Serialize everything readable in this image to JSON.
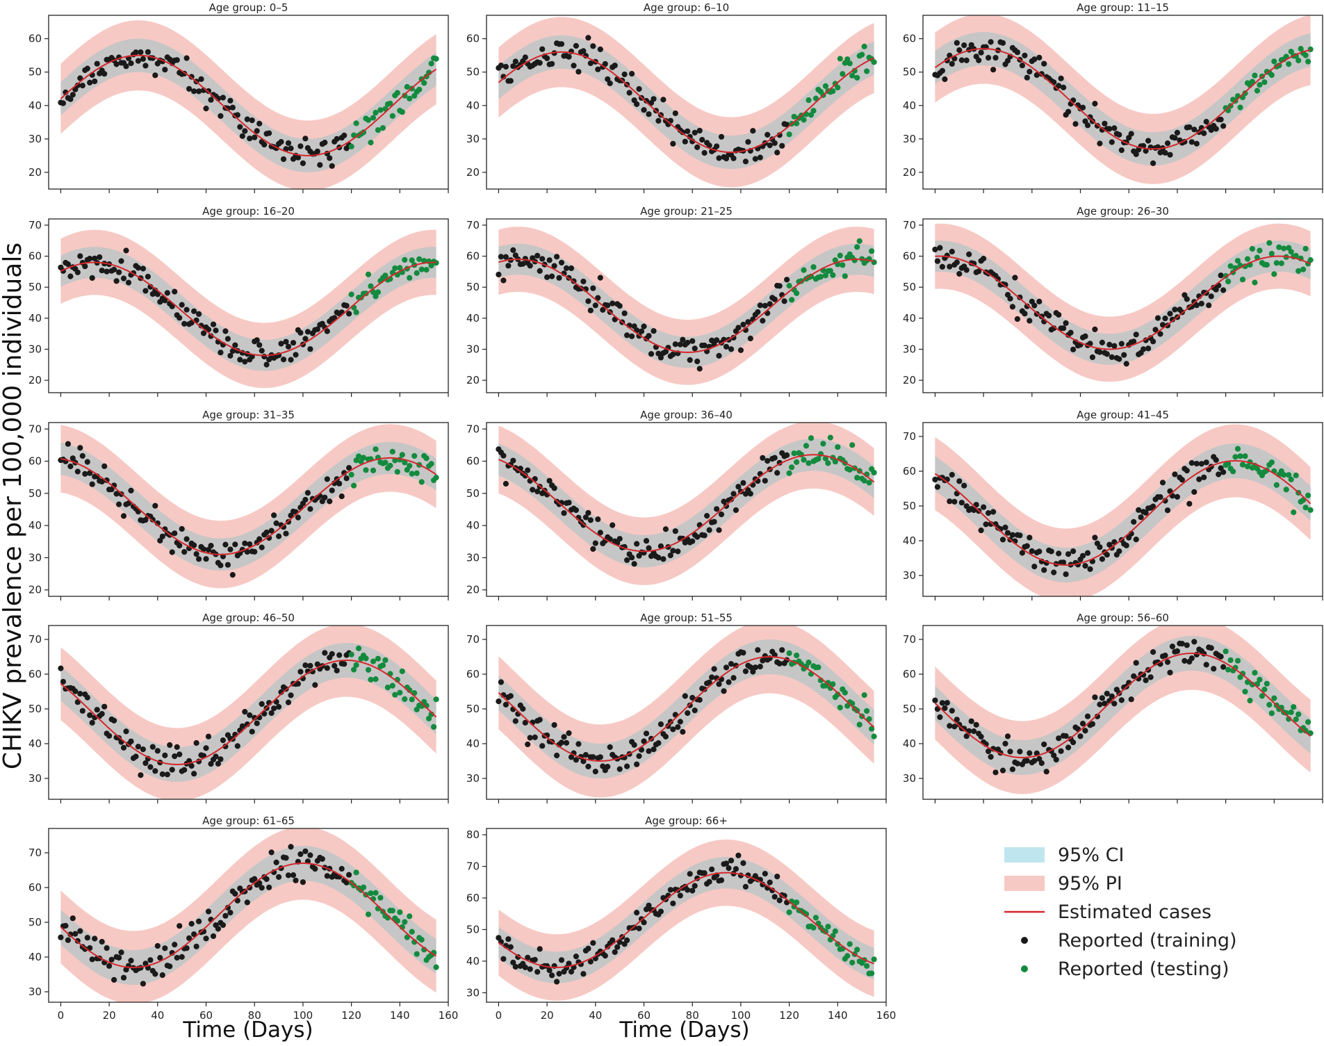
{
  "figure": {
    "ylabel": "CHIKV prevalence per 100,000 individuals",
    "xlabel": "Time (Days)",
    "legend": {
      "placement": "bottom-right",
      "items": [
        {
          "label": "95% CI",
          "kind": "ci"
        },
        {
          "label": "95% PI",
          "kind": "pi"
        },
        {
          "label": "Estimated cases",
          "kind": "line"
        },
        {
          "label": "Reported (training)",
          "kind": "train"
        },
        {
          "label": "Reported (testing)",
          "kind": "test"
        }
      ]
    },
    "colors": {
      "ci": "#bfe6ee",
      "pi": "#f7c9c4",
      "ci_overlay": "#c6c6c6",
      "line": "#d6262a",
      "train": "#1a1a1a",
      "test": "#138a3e"
    }
  },
  "chart_data": [
    {
      "type": "scatter",
      "title": "Age group: 0–5",
      "xlim": [
        -5,
        160
      ],
      "ylim": [
        15,
        67
      ],
      "yticks": [
        20,
        30,
        40,
        50,
        60
      ],
      "xticks": [
        0,
        20,
        40,
        60,
        80,
        100,
        120,
        140,
        160
      ],
      "show_xticklabels": false,
      "model": {
        "mean": 40,
        "amp": 15,
        "period": 140,
        "peak": 32,
        "ci": 5,
        "pi": 10.5
      },
      "test_start": 120,
      "noise": 2.2
    },
    {
      "type": "scatter",
      "title": "Age group: 6–10",
      "xlim": [
        -5,
        160
      ],
      "ylim": [
        15,
        67
      ],
      "yticks": [
        20,
        30,
        40,
        50,
        60
      ],
      "xticks": [
        0,
        20,
        40,
        60,
        80,
        100,
        120,
        140,
        160
      ],
      "show_xticklabels": false,
      "model": {
        "mean": 41,
        "amp": 15,
        "period": 140,
        "peak": 26,
        "ci": 5,
        "pi": 10.5
      },
      "test_start": 120,
      "noise": 2.5
    },
    {
      "type": "scatter",
      "title": "Age group: 11–15",
      "xlim": [
        -5,
        160
      ],
      "ylim": [
        15,
        67
      ],
      "yticks": [
        20,
        30,
        40,
        50,
        60
      ],
      "xticks": [
        0,
        20,
        40,
        60,
        80,
        100,
        120,
        140,
        160
      ],
      "show_xticklabels": false,
      "model": {
        "mean": 42,
        "amp": 15,
        "period": 140,
        "peak": 20,
        "ci": 5,
        "pi": 10.5
      },
      "test_start": 120,
      "noise": 2.2
    },
    {
      "type": "scatter",
      "title": "Age group: 16–20",
      "xlim": [
        -5,
        160
      ],
      "ylim": [
        16,
        72
      ],
      "yticks": [
        20,
        30,
        40,
        50,
        60,
        70
      ],
      "xticks": [
        0,
        20,
        40,
        60,
        80,
        100,
        120,
        140,
        160
      ],
      "show_xticklabels": false,
      "model": {
        "mean": 43,
        "amp": 15,
        "period": 140,
        "peak": 14,
        "ci": 5,
        "pi": 10.5
      },
      "test_start": 120,
      "noise": 2.3
    },
    {
      "type": "scatter",
      "title": "Age group: 21–25",
      "xlim": [
        -5,
        160
      ],
      "ylim": [
        16,
        72
      ],
      "yticks": [
        20,
        30,
        40,
        50,
        60,
        70
      ],
      "xticks": [
        0,
        20,
        40,
        60,
        80,
        100,
        120,
        140,
        160
      ],
      "show_xticklabels": false,
      "model": {
        "mean": 44,
        "amp": 15,
        "period": 140,
        "peak": 8,
        "ci": 5,
        "pi": 10.5
      },
      "test_start": 120,
      "noise": 2.5
    },
    {
      "type": "scatter",
      "title": "Age group: 26–30",
      "xlim": [
        -5,
        160
      ],
      "ylim": [
        16,
        72
      ],
      "yticks": [
        20,
        30,
        40,
        50,
        60,
        70
      ],
      "xticks": [
        0,
        20,
        40,
        60,
        80,
        100,
        120,
        140,
        160
      ],
      "show_xticklabels": false,
      "model": {
        "mean": 45,
        "amp": 15,
        "period": 140,
        "peak": 2,
        "ci": 5,
        "pi": 10.5
      },
      "test_start": 120,
      "noise": 2.3
    },
    {
      "type": "scatter",
      "title": "Age group: 31–35",
      "xlim": [
        -5,
        160
      ],
      "ylim": [
        18,
        72
      ],
      "yticks": [
        20,
        30,
        40,
        50,
        60,
        70
      ],
      "xticks": [
        0,
        20,
        40,
        60,
        80,
        100,
        120,
        140,
        160
      ],
      "show_xticklabels": false,
      "model": {
        "mean": 46,
        "amp": 15,
        "period": 140,
        "peak": -4,
        "ci": 5,
        "pi": 10.5
      },
      "test_start": 120,
      "noise": 2.3
    },
    {
      "type": "scatter",
      "title": "Age group: 36–40",
      "xlim": [
        -5,
        160
      ],
      "ylim": [
        18,
        72
      ],
      "yticks": [
        20,
        30,
        40,
        50,
        60,
        70
      ],
      "xticks": [
        0,
        20,
        40,
        60,
        80,
        100,
        120,
        140,
        160
      ],
      "show_xticklabels": false,
      "model": {
        "mean": 47,
        "amp": 15,
        "period": 140,
        "peak": -10,
        "ci": 5,
        "pi": 10.5
      },
      "test_start": 120,
      "noise": 2.3
    },
    {
      "type": "scatter",
      "title": "Age group: 41–45",
      "xlim": [
        -5,
        160
      ],
      "ylim": [
        24,
        74
      ],
      "yticks": [
        30,
        40,
        50,
        60,
        70
      ],
      "xticks": [
        0,
        20,
        40,
        60,
        80,
        100,
        120,
        140,
        160
      ],
      "show_xticklabels": false,
      "model": {
        "mean": 48,
        "amp": 15,
        "period": 140,
        "peak": -16,
        "ci": 5,
        "pi": 10.5
      },
      "test_start": 120,
      "noise": 2.3
    },
    {
      "type": "scatter",
      "title": "Age group: 46–50",
      "xlim": [
        -5,
        160
      ],
      "ylim": [
        24,
        74
      ],
      "yticks": [
        30,
        40,
        50,
        60,
        70
      ],
      "xticks": [
        0,
        20,
        40,
        60,
        80,
        100,
        120,
        140,
        160
      ],
      "show_xticklabels": false,
      "model": {
        "mean": 49,
        "amp": 15,
        "period": 140,
        "peak": -22,
        "ci": 5,
        "pi": 10.5
      },
      "test_start": 120,
      "noise": 2.3
    },
    {
      "type": "scatter",
      "title": "Age group: 51–55",
      "xlim": [
        -5,
        160
      ],
      "ylim": [
        24,
        74
      ],
      "yticks": [
        30,
        40,
        50,
        60,
        70
      ],
      "xticks": [
        0,
        20,
        40,
        60,
        80,
        100,
        120,
        140,
        160
      ],
      "show_xticklabels": false,
      "model": {
        "mean": 50,
        "amp": 15,
        "period": 140,
        "peak": -28,
        "ci": 5,
        "pi": 10.5
      },
      "test_start": 120,
      "noise": 2.3
    },
    {
      "type": "scatter",
      "title": "Age group: 56–60",
      "xlim": [
        -5,
        160
      ],
      "ylim": [
        24,
        74
      ],
      "yticks": [
        30,
        40,
        50,
        60,
        70
      ],
      "xticks": [
        0,
        20,
        40,
        60,
        80,
        100,
        120,
        140,
        160
      ],
      "show_xticklabels": false,
      "model": {
        "mean": 51,
        "amp": 15,
        "period": 140,
        "peak": -34,
        "ci": 5,
        "pi": 10.5
      },
      "test_start": 120,
      "noise": 2.3
    },
    {
      "type": "scatter",
      "title": "Age group: 61–65",
      "xlim": [
        -5,
        160
      ],
      "ylim": [
        27,
        77
      ],
      "yticks": [
        30,
        40,
        50,
        60,
        70
      ],
      "xticks": [
        0,
        20,
        40,
        60,
        80,
        100,
        120,
        140,
        160
      ],
      "show_xticklabels": true,
      "model": {
        "mean": 52,
        "amp": 15,
        "period": 140,
        "peak": -40,
        "ci": 5,
        "pi": 10.5
      },
      "test_start": 120,
      "noise": 2.3
    },
    {
      "type": "scatter",
      "title": "Age group: 66+",
      "xlim": [
        -5,
        160
      ],
      "ylim": [
        27,
        82
      ],
      "yticks": [
        30,
        40,
        50,
        60,
        70,
        80
      ],
      "xticks": [
        0,
        20,
        40,
        60,
        80,
        100,
        120,
        140,
        160
      ],
      "show_xticklabels": true,
      "model": {
        "mean": 53,
        "amp": 15,
        "period": 140,
        "peak": -46,
        "ci": 5,
        "pi": 10.5
      },
      "test_start": 120,
      "noise": 2.3
    }
  ]
}
